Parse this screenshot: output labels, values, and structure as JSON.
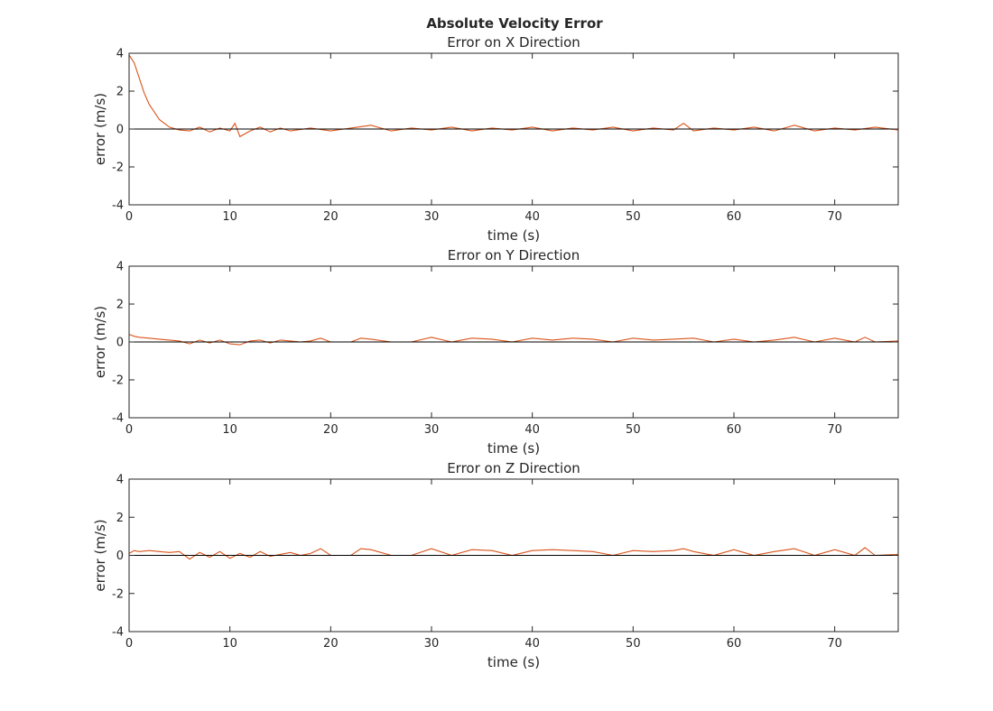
{
  "figure": {
    "title": "Absolute Velocity Error"
  },
  "colors": {
    "series": "#d95319",
    "reference": "#000000",
    "axes": "#262626",
    "background": "#ffffff"
  },
  "chart_data": [
    {
      "type": "line",
      "title": "Error on X Direction",
      "xlabel": "time (s)",
      "ylabel": "error (m/s)",
      "xlim": [
        0,
        76.3
      ],
      "ylim": [
        -4,
        4
      ],
      "xticks": [
        0,
        10,
        20,
        30,
        40,
        50,
        60,
        70
      ],
      "yticks": [
        -4,
        -2,
        0,
        2,
        4
      ],
      "grid": false,
      "legend": "none",
      "series": [
        {
          "color": "#d95319",
          "x": [
            0,
            0.5,
            1,
            1.5,
            2,
            2.5,
            3,
            3.5,
            4,
            5,
            6,
            7,
            8,
            9,
            10,
            10.5,
            11,
            12,
            13,
            14,
            15,
            16,
            18,
            20,
            22,
            24,
            26,
            28,
            30,
            32,
            34,
            36,
            38,
            40,
            42,
            44,
            46,
            48,
            50,
            52,
            54,
            55,
            56,
            58,
            60,
            62,
            64,
            66,
            68,
            70,
            72,
            74,
            76.3
          ],
          "y": [
            3.9,
            3.5,
            2.7,
            1.9,
            1.3,
            0.9,
            0.5,
            0.3,
            0.1,
            -0.05,
            -0.1,
            0.1,
            -0.15,
            0.05,
            -0.1,
            0.3,
            -0.4,
            -0.1,
            0.1,
            -0.15,
            0.05,
            -0.1,
            0.05,
            -0.1,
            0.05,
            0.2,
            -0.1,
            0.05,
            -0.05,
            0.1,
            -0.1,
            0.05,
            -0.05,
            0.1,
            -0.1,
            0.05,
            -0.05,
            0.1,
            -0.1,
            0.05,
            -0.05,
            0.3,
            -0.1,
            0.05,
            -0.05,
            0.1,
            -0.1,
            0.2,
            -0.1,
            0.05,
            -0.05,
            0.1,
            -0.05
          ]
        },
        {
          "color": "#000000",
          "x": [
            0,
            76.3
          ],
          "y": [
            0,
            0
          ]
        }
      ]
    },
    {
      "type": "line",
      "title": "Error on Y Direction",
      "xlabel": "time (s)",
      "ylabel": "error (m/s)",
      "xlim": [
        0,
        76.3
      ],
      "ylim": [
        -4,
        4
      ],
      "xticks": [
        0,
        10,
        20,
        30,
        40,
        50,
        60,
        70
      ],
      "yticks": [
        -4,
        -2,
        0,
        2,
        4
      ],
      "grid": false,
      "legend": "none",
      "series": [
        {
          "color": "#d95319",
          "x": [
            0,
            0.5,
            1,
            2,
            3,
            4,
            5,
            6,
            7,
            8,
            9,
            10,
            11,
            12,
            13,
            14,
            15,
            16,
            17,
            18,
            19,
            20,
            22,
            23,
            24,
            26,
            28,
            30,
            32,
            34,
            36,
            38,
            40,
            42,
            44,
            46,
            48,
            50,
            52,
            54,
            56,
            58,
            60,
            62,
            64,
            66,
            68,
            70,
            72,
            73,
            74,
            76.3
          ],
          "y": [
            0.4,
            0.3,
            0.25,
            0.2,
            0.15,
            0.1,
            0.05,
            -0.1,
            0.1,
            -0.05,
            0.1,
            -0.1,
            -0.15,
            0.05,
            0.1,
            -0.05,
            0.1,
            0.05,
            0.0,
            0.05,
            0.2,
            0.0,
            0.0,
            0.2,
            0.15,
            0.0,
            0.0,
            0.25,
            0.0,
            0.2,
            0.15,
            0.0,
            0.2,
            0.1,
            0.2,
            0.15,
            0.0,
            0.2,
            0.1,
            0.15,
            0.2,
            0.0,
            0.15,
            0.0,
            0.1,
            0.25,
            0.0,
            0.2,
            0.0,
            0.25,
            0.0,
            0.05
          ]
        },
        {
          "color": "#000000",
          "x": [
            0,
            76.3
          ],
          "y": [
            0,
            0
          ]
        }
      ]
    },
    {
      "type": "line",
      "title": "Error on Z Direction",
      "xlabel": "time (s)",
      "ylabel": "error (m/s)",
      "xlim": [
        0,
        76.3
      ],
      "ylim": [
        -4,
        4
      ],
      "xticks": [
        0,
        10,
        20,
        30,
        40,
        50,
        60,
        70
      ],
      "yticks": [
        -4,
        -2,
        0,
        2,
        4
      ],
      "grid": false,
      "legend": "none",
      "series": [
        {
          "color": "#d95319",
          "x": [
            0,
            0.5,
            1,
            2,
            3,
            4,
            5,
            6,
            7,
            8,
            9,
            10,
            11,
            12,
            13,
            14,
            16,
            17,
            18,
            19,
            20,
            22,
            23,
            24,
            26,
            28,
            30,
            32,
            34,
            36,
            38,
            40,
            42,
            44,
            46,
            48,
            50,
            52,
            54,
            55,
            56,
            58,
            60,
            62,
            64,
            66,
            68,
            70,
            72,
            73,
            74,
            76.3
          ],
          "y": [
            0.1,
            0.25,
            0.2,
            0.25,
            0.2,
            0.15,
            0.2,
            -0.2,
            0.15,
            -0.1,
            0.2,
            -0.15,
            0.1,
            -0.1,
            0.2,
            -0.05,
            0.15,
            0.0,
            0.1,
            0.35,
            0.0,
            0.0,
            0.35,
            0.3,
            0.0,
            0.0,
            0.35,
            0.0,
            0.3,
            0.25,
            0.0,
            0.25,
            0.3,
            0.25,
            0.2,
            0.0,
            0.25,
            0.2,
            0.25,
            0.35,
            0.2,
            0.0,
            0.3,
            0.0,
            0.2,
            0.35,
            0.0,
            0.3,
            0.0,
            0.4,
            0.0,
            0.05
          ]
        },
        {
          "color": "#000000",
          "x": [
            0,
            76.3
          ],
          "y": [
            0,
            0
          ]
        }
      ]
    }
  ]
}
